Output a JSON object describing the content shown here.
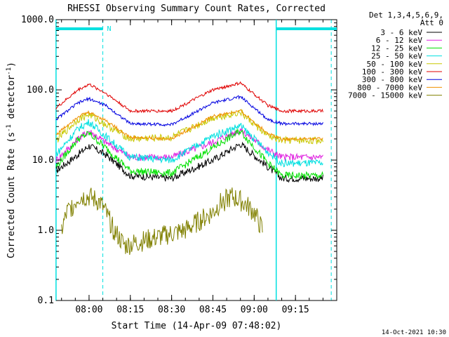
{
  "chart_data": {
    "type": "line",
    "title": "RHESSI Observing Summary Count Rates, Corrected",
    "xlabel": "Start Time (14-Apr-09 07:48:02)",
    "ylabel": "Corrected Count Rate (s",
    "ylabel_sup1": "-1",
    "ylabel_mid": " detector",
    "ylabel_sup2": "-1",
    "ylabel_end": ")",
    "y_scale": "log",
    "ylim": [
      0.1,
      1000
    ],
    "y_ticks": [
      "0.1",
      "1.0",
      "10.0",
      "100.0",
      "1000.0"
    ],
    "x_range": [
      "07:48:02",
      "09:30"
    ],
    "x_ticks": [
      "08:00",
      "08:15",
      "08:30",
      "08:45",
      "09:00",
      "09:15"
    ],
    "legend_header": [
      "Det 1,3,4,5,6,9,",
      "Att 0"
    ],
    "legend_placement": "right",
    "series": [
      {
        "name": "3 - 6 keV",
        "color": "#000000",
        "points": [
          [
            "07:48",
            7
          ],
          [
            "07:56",
            12
          ],
          [
            "08:00",
            16
          ],
          [
            "08:06",
            12
          ],
          [
            "08:15",
            6
          ],
          [
            "08:30",
            5.5
          ],
          [
            "08:45",
            10
          ],
          [
            "08:55",
            17
          ],
          [
            "09:05",
            8
          ],
          [
            "09:10",
            5.5
          ],
          [
            "09:25",
            5.5
          ]
        ]
      },
      {
        "name": "6 - 12 keV",
        "color": "#e020e0",
        "points": [
          [
            "07:48",
            10
          ],
          [
            "07:56",
            20
          ],
          [
            "08:00",
            26
          ],
          [
            "08:06",
            18
          ],
          [
            "08:15",
            11
          ],
          [
            "08:30",
            11
          ],
          [
            "08:45",
            18
          ],
          [
            "08:55",
            27
          ],
          [
            "09:05",
            14
          ],
          [
            "09:10",
            11
          ],
          [
            "09:25",
            11
          ]
        ]
      },
      {
        "name": "12 - 25 keV",
        "color": "#00e000",
        "points": [
          [
            "07:48",
            8
          ],
          [
            "07:56",
            20
          ],
          [
            "08:00",
            24
          ],
          [
            "08:06",
            15
          ],
          [
            "08:15",
            7
          ],
          [
            "08:30",
            6.5
          ],
          [
            "08:45",
            15
          ],
          [
            "08:55",
            26
          ],
          [
            "09:05",
            9
          ],
          [
            "09:10",
            6
          ],
          [
            "09:25",
            6
          ]
        ]
      },
      {
        "name": "25 - 50 keV",
        "color": "#00e0e0",
        "points": [
          [
            "07:48",
            12
          ],
          [
            "07:56",
            28
          ],
          [
            "08:00",
            35
          ],
          [
            "08:06",
            22
          ],
          [
            "08:15",
            11
          ],
          [
            "08:30",
            10
          ],
          [
            "08:45",
            22
          ],
          [
            "08:55",
            31
          ],
          [
            "09:05",
            13
          ],
          [
            "09:10",
            9
          ],
          [
            "09:25",
            9
          ]
        ]
      },
      {
        "name": "50 - 100 keV",
        "color": "#c8c800",
        "points": [
          [
            "07:48",
            19
          ],
          [
            "07:56",
            38
          ],
          [
            "08:00",
            45
          ],
          [
            "08:06",
            32
          ],
          [
            "08:15",
            20
          ],
          [
            "08:30",
            21
          ],
          [
            "08:45",
            40
          ],
          [
            "08:55",
            48
          ],
          [
            "09:05",
            22
          ],
          [
            "09:10",
            19
          ],
          [
            "09:25",
            19
          ]
        ]
      },
      {
        "name": "100 - 300 keV",
        "color": "#e00000",
        "points": [
          [
            "07:48",
            55
          ],
          [
            "07:56",
            100
          ],
          [
            "08:00",
            120
          ],
          [
            "08:06",
            90
          ],
          [
            "08:15",
            50
          ],
          [
            "08:30",
            50
          ],
          [
            "08:45",
            100
          ],
          [
            "08:55",
            125
          ],
          [
            "09:05",
            60
          ],
          [
            "09:10",
            50
          ],
          [
            "09:25",
            50
          ]
        ]
      },
      {
        "name": "300 - 800 keV",
        "color": "#0000e0",
        "points": [
          [
            "07:48",
            38
          ],
          [
            "07:56",
            65
          ],
          [
            "08:00",
            75
          ],
          [
            "08:06",
            60
          ],
          [
            "08:15",
            33
          ],
          [
            "08:30",
            32
          ],
          [
            "08:45",
            65
          ],
          [
            "08:55",
            80
          ],
          [
            "09:05",
            38
          ],
          [
            "09:10",
            33
          ],
          [
            "09:25",
            33
          ]
        ]
      },
      {
        "name": "800 - 7000 keV",
        "color": "#f09000",
        "points": [
          [
            "07:48",
            23
          ],
          [
            "07:56",
            42
          ],
          [
            "08:00",
            48
          ],
          [
            "08:06",
            37
          ],
          [
            "08:15",
            21
          ],
          [
            "08:30",
            20
          ],
          [
            "08:45",
            42
          ],
          [
            "08:55",
            50
          ],
          [
            "09:05",
            24
          ],
          [
            "09:10",
            20
          ],
          [
            "09:25",
            20
          ]
        ]
      },
      {
        "name": "7000 - 15000 keV",
        "color": "#808000",
        "points": [
          [
            "07:50",
            1
          ],
          [
            "07:52",
            1.8
          ],
          [
            "07:55",
            2.5
          ],
          [
            "07:56",
            3
          ],
          [
            "08:00",
            3
          ],
          [
            "08:04",
            2.5
          ],
          [
            "08:06",
            1.8
          ],
          [
            "08:09",
            1
          ],
          [
            "08:13",
            0.6
          ],
          [
            "08:35",
            1
          ],
          [
            "08:45",
            1.8
          ],
          [
            "08:48",
            2.5
          ],
          [
            "08:52",
            3
          ],
          [
            "08:56",
            2.5
          ],
          [
            "09:00",
            1.8
          ],
          [
            "09:03",
            1
          ]
        ]
      }
    ],
    "annotations": {
      "flag_label": "N",
      "cyan_bar_intervals": [
        [
          "07:48",
          "08:05"
        ],
        [
          "09:08",
          "09:30"
        ]
      ],
      "cyan_solid_lines": [
        "07:48",
        "09:08"
      ],
      "cyan_dashed_lines": [
        "08:05",
        "09:28"
      ]
    },
    "timestamp": "14-Oct-2021 10:30"
  }
}
